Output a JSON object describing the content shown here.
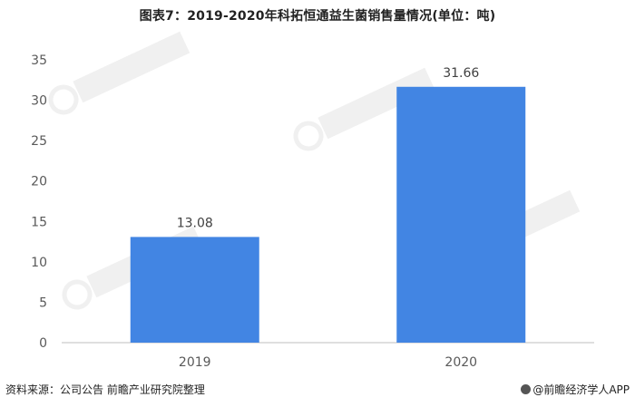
{
  "header": {
    "title": "图表7：2019-2020年科拓恒通益生菌销售量情况(单位：吨)"
  },
  "footer": {
    "source": "资料来源：公司公告 前瞻产业研究院整理",
    "brand_icon": "qianzhan-logo-icon",
    "brand": "@前瞻经济学人APP"
  },
  "chart_data": {
    "type": "bar",
    "title": "图表7：2019-2020年科拓恒通益生菌销售量情况(单位：吨)",
    "categories": [
      "2019",
      "2020"
    ],
    "values": [
      13.08,
      31.66
    ],
    "value_labels": [
      "13.08",
      "31.66"
    ],
    "ylim": [
      0,
      35
    ],
    "yticks": [
      0,
      5,
      10,
      15,
      20,
      25,
      30,
      35
    ],
    "ytick_labels": [
      "0",
      "5",
      "10",
      "15",
      "20",
      "25",
      "30",
      "35"
    ],
    "xlabel": "",
    "ylabel": "",
    "grid": false,
    "legend": "none",
    "bar_color": "#4285e3"
  }
}
